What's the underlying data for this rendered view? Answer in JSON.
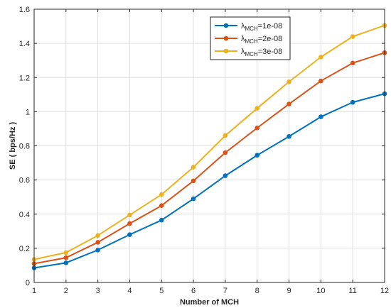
{
  "chart_data": {
    "type": "line",
    "xlabel": "Number of MCH",
    "ylabel": "SE ( bps/Hz )",
    "xlim": [
      1,
      12
    ],
    "ylim": [
      0,
      1.6
    ],
    "x_ticks": [
      "1",
      "2",
      "3",
      "4",
      "5",
      "6",
      "7",
      "8",
      "9",
      "10",
      "11",
      "12"
    ],
    "y_ticks": [
      "0",
      "0.2",
      "0.4",
      "0.6",
      "0.8",
      "1",
      "1.2",
      "1.4",
      "1.6"
    ],
    "grid": true,
    "legend_position": "top-right",
    "x": [
      1,
      2,
      3,
      4,
      5,
      6,
      7,
      8,
      9,
      10,
      11,
      12
    ],
    "series": [
      {
        "name_main": "λ",
        "name_sub": "MCH",
        "name_tail": "=1e-08",
        "color": "#0072BD",
        "values": [
          0.085,
          0.115,
          0.19,
          0.28,
          0.365,
          0.49,
          0.625,
          0.745,
          0.855,
          0.97,
          1.055,
          1.105
        ]
      },
      {
        "name_main": "λ",
        "name_sub": "MCH",
        "name_tail": "=2e-08",
        "color": "#D95319",
        "values": [
          0.11,
          0.145,
          0.235,
          0.345,
          0.45,
          0.595,
          0.76,
          0.905,
          1.045,
          1.18,
          1.285,
          1.345
        ]
      },
      {
        "name_main": "λ",
        "name_sub": "MCH",
        "name_tail": "=3e-08",
        "color": "#EDB120",
        "values": [
          0.135,
          0.175,
          0.275,
          0.395,
          0.515,
          0.675,
          0.86,
          1.02,
          1.175,
          1.32,
          1.44,
          1.505
        ]
      }
    ]
  }
}
